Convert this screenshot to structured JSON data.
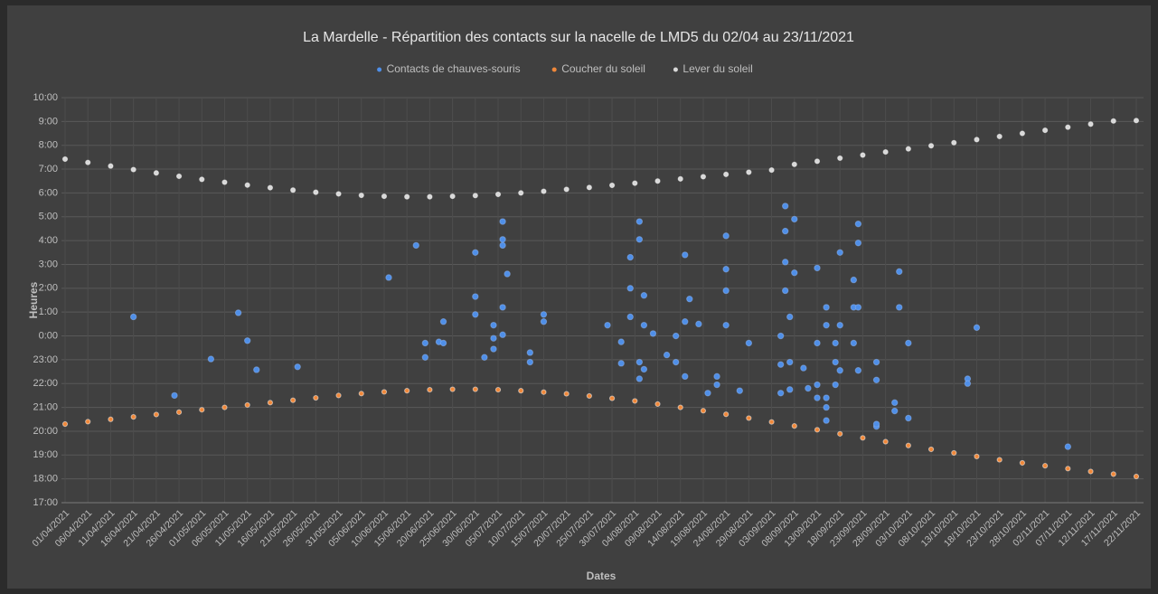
{
  "chart_data": {
    "type": "scatter",
    "title": "La Mardelle - Répartition des contacts sur la nacelle de LMD5 du 02/04 au 23/11/2021",
    "xlabel": "Dates",
    "ylabel": "Heures",
    "legend": "top",
    "grid": true,
    "xlim": [
      "01/04/2021",
      "23/11/2021"
    ],
    "xticks": [
      "01/04/2021",
      "06/04/2021",
      "11/04/2021",
      "16/04/2021",
      "21/04/2021",
      "26/04/2021",
      "01/05/2021",
      "06/05/2021",
      "11/05/2021",
      "16/05/2021",
      "21/05/2021",
      "26/05/2021",
      "31/05/2021",
      "05/06/2021",
      "10/06/2021",
      "15/06/2021",
      "20/06/2021",
      "25/06/2021",
      "30/06/2021",
      "05/07/2021",
      "10/07/2021",
      "15/07/2021",
      "20/07/2021",
      "25/07/2021",
      "30/07/2021",
      "04/08/2021",
      "09/08/2021",
      "14/08/2021",
      "19/08/2021",
      "24/08/2021",
      "29/08/2021",
      "03/09/2021",
      "08/09/2021",
      "13/09/2021",
      "18/09/2021",
      "23/09/2021",
      "28/09/2021",
      "03/10/2021",
      "08/10/2021",
      "13/10/2021",
      "18/10/2021",
      "23/10/2021",
      "28/10/2021",
      "02/11/2021",
      "07/11/2021",
      "12/11/2021",
      "17/11/2021",
      "22/11/2021"
    ],
    "ylim": [
      17,
      34
    ],
    "yticks": [
      {
        "value": 17,
        "label": "17:00"
      },
      {
        "value": 18,
        "label": "18:00"
      },
      {
        "value": 19,
        "label": "19:00"
      },
      {
        "value": 20,
        "label": "20:00"
      },
      {
        "value": 21,
        "label": "21:00"
      },
      {
        "value": 22,
        "label": "22:00"
      },
      {
        "value": 23,
        "label": "23:00"
      },
      {
        "value": 24,
        "label": "0:00"
      },
      {
        "value": 25,
        "label": "1:00"
      },
      {
        "value": 26,
        "label": "2:00"
      },
      {
        "value": 27,
        "label": "3:00"
      },
      {
        "value": 28,
        "label": "4:00"
      },
      {
        "value": 29,
        "label": "5:00"
      },
      {
        "value": 30,
        "label": "6:00"
      },
      {
        "value": 31,
        "label": "7:00"
      },
      {
        "value": 32,
        "label": "8:00"
      },
      {
        "value": 33,
        "label": "9:00"
      },
      {
        "value": 34,
        "label": "10:00"
      }
    ],
    "series": [
      {
        "name": "Contacts de chauves-souris",
        "color": "#4f8fe8",
        "x": [
          "16/04/2021",
          "25/04/2021",
          "03/05/2021",
          "09/05/2021",
          "11/05/2021",
          "13/05/2021",
          "22/05/2021",
          "11/06/2021",
          "17/06/2021",
          "19/06/2021",
          "19/06/2021",
          "22/06/2021",
          "23/06/2021",
          "23/06/2021",
          "30/06/2021",
          "30/06/2021",
          "30/06/2021",
          "02/07/2021",
          "04/07/2021",
          "04/07/2021",
          "04/07/2021",
          "06/07/2021",
          "06/07/2021",
          "06/07/2021",
          "06/07/2021",
          "06/07/2021",
          "07/07/2021",
          "12/07/2021",
          "12/07/2021",
          "15/07/2021",
          "15/07/2021",
          "29/07/2021",
          "01/08/2021",
          "01/08/2021",
          "03/08/2021",
          "03/08/2021",
          "03/08/2021",
          "05/08/2021",
          "05/08/2021",
          "05/08/2021",
          "05/08/2021",
          "06/08/2021",
          "06/08/2021",
          "06/08/2021",
          "08/08/2021",
          "11/08/2021",
          "13/08/2021",
          "13/08/2021",
          "15/08/2021",
          "15/08/2021",
          "15/08/2021",
          "16/08/2021",
          "18/08/2021",
          "20/08/2021",
          "22/08/2021",
          "22/08/2021",
          "24/08/2021",
          "24/08/2021",
          "24/08/2021",
          "24/08/2021",
          "27/08/2021",
          "29/08/2021",
          "05/09/2021",
          "05/09/2021",
          "05/09/2021",
          "06/09/2021",
          "06/09/2021",
          "06/09/2021",
          "06/09/2021",
          "07/09/2021",
          "07/09/2021",
          "07/09/2021",
          "08/09/2021",
          "08/09/2021",
          "10/09/2021",
          "11/09/2021",
          "13/09/2021",
          "13/09/2021",
          "13/09/2021",
          "13/09/2021",
          "15/09/2021",
          "15/09/2021",
          "15/09/2021",
          "15/09/2021",
          "15/09/2021",
          "17/09/2021",
          "17/09/2021",
          "17/09/2021",
          "18/09/2021",
          "18/09/2021",
          "18/09/2021",
          "21/09/2021",
          "21/09/2021",
          "21/09/2021",
          "22/09/2021",
          "22/09/2021",
          "22/09/2021",
          "22/09/2021",
          "26/09/2021",
          "26/09/2021",
          "26/09/2021",
          "26/09/2021",
          "30/09/2021",
          "30/09/2021",
          "01/10/2021",
          "01/10/2021",
          "03/10/2021",
          "03/10/2021",
          "16/10/2021",
          "16/10/2021",
          "18/10/2021",
          "07/11/2021"
        ],
        "values": [
          24.8,
          21.5,
          23.03,
          24.97,
          23.8,
          22.58,
          22.7,
          26.45,
          27.8,
          23.7,
          23.1,
          23.75,
          23.7,
          24.6,
          27.5,
          25.65,
          24.9,
          23.1,
          23.45,
          23.9,
          24.45,
          28.8,
          28.05,
          27.8,
          25.2,
          24.05,
          26.6,
          23.3,
          22.9,
          24.6,
          24.9,
          24.45,
          23.75,
          22.85,
          27.3,
          26,
          24.8,
          22.9,
          22.2,
          28.8,
          28.05,
          25.7,
          24.45,
          22.6,
          24.1,
          23.2,
          24,
          22.9,
          27.4,
          24.6,
          22.3,
          25.55,
          24.5,
          21.6,
          22.3,
          21.95,
          28.2,
          26.8,
          25.9,
          24.45,
          21.7,
          23.7,
          21.6,
          22.8,
          24,
          29.45,
          28.4,
          27.1,
          25.9,
          24.8,
          22.9,
          21.75,
          28.9,
          26.65,
          22.65,
          21.8,
          21.95,
          21.4,
          26.85,
          23.7,
          20.45,
          21.4,
          24.45,
          21,
          25.2,
          23.7,
          22.9,
          21.95,
          27.5,
          24.45,
          22.55,
          25.2,
          23.7,
          26.35,
          28.7,
          22.55,
          27.9,
          25.2,
          20.2,
          20.3,
          22.9,
          22.15,
          20.85,
          21.2,
          26.7,
          25.2,
          20.55,
          23.7,
          22.2,
          22,
          24.35,
          19.35
        ]
      },
      {
        "name": "Coucher du soleil",
        "color": "#f0883a",
        "x": [
          "01/04/2021",
          "06/04/2021",
          "11/04/2021",
          "16/04/2021",
          "21/04/2021",
          "26/04/2021",
          "01/05/2021",
          "06/05/2021",
          "11/05/2021",
          "16/05/2021",
          "21/05/2021",
          "26/05/2021",
          "31/05/2021",
          "05/06/2021",
          "10/06/2021",
          "15/06/2021",
          "20/06/2021",
          "25/06/2021",
          "30/06/2021",
          "05/07/2021",
          "10/07/2021",
          "15/07/2021",
          "20/07/2021",
          "25/07/2021",
          "30/07/2021",
          "04/08/2021",
          "09/08/2021",
          "14/08/2021",
          "19/08/2021",
          "24/08/2021",
          "29/08/2021",
          "03/09/2021",
          "08/09/2021",
          "13/09/2021",
          "18/09/2021",
          "23/09/2021",
          "28/09/2021",
          "03/10/2021",
          "08/10/2021",
          "13/10/2021",
          "18/10/2021",
          "23/10/2021",
          "28/10/2021",
          "02/11/2021",
          "07/11/2021",
          "12/11/2021",
          "17/11/2021",
          "22/11/2021"
        ],
        "values": [
          20.3,
          20.4,
          20.5,
          20.6,
          20.7,
          20.8,
          20.9,
          21,
          21.1,
          21.2,
          21.3,
          21.4,
          21.5,
          21.58,
          21.65,
          21.7,
          21.74,
          21.76,
          21.76,
          21.74,
          21.7,
          21.64,
          21.57,
          21.48,
          21.38,
          21.27,
          21.14,
          21,
          20.86,
          20.71,
          20.55,
          20.39,
          20.22,
          20.06,
          19.89,
          19.72,
          19.56,
          19.4,
          19.24,
          19.09,
          18.94,
          18.8,
          18.67,
          18.55,
          18.43,
          18.31,
          18.2,
          18.1
        ]
      },
      {
        "name": "Lever du soleil",
        "color": "#d8d8d8",
        "x": [
          "01/04/2021",
          "06/04/2021",
          "11/04/2021",
          "16/04/2021",
          "21/04/2021",
          "26/04/2021",
          "01/05/2021",
          "06/05/2021",
          "11/05/2021",
          "16/05/2021",
          "21/05/2021",
          "26/05/2021",
          "31/05/2021",
          "05/06/2021",
          "10/06/2021",
          "15/06/2021",
          "20/06/2021",
          "25/06/2021",
          "30/06/2021",
          "05/07/2021",
          "10/07/2021",
          "15/07/2021",
          "20/07/2021",
          "25/07/2021",
          "30/07/2021",
          "04/08/2021",
          "09/08/2021",
          "14/08/2021",
          "19/08/2021",
          "24/08/2021",
          "29/08/2021",
          "03/09/2021",
          "08/09/2021",
          "13/09/2021",
          "18/09/2021",
          "23/09/2021",
          "28/09/2021",
          "03/10/2021",
          "08/10/2021",
          "13/10/2021",
          "18/10/2021",
          "23/10/2021",
          "28/10/2021",
          "02/11/2021",
          "07/11/2021",
          "12/11/2021",
          "17/11/2021",
          "22/11/2021"
        ],
        "values": [
          31.42,
          31.28,
          31.13,
          30.98,
          30.84,
          30.7,
          30.57,
          30.45,
          30.33,
          30.22,
          30.12,
          30.03,
          29.96,
          29.9,
          29.86,
          29.84,
          29.84,
          29.86,
          29.89,
          29.94,
          30,
          30.07,
          30.15,
          30.23,
          30.32,
          30.41,
          30.5,
          30.59,
          30.68,
          30.78,
          30.87,
          30.96,
          31.2,
          31.33,
          31.46,
          31.59,
          31.72,
          31.85,
          31.98,
          32.11,
          32.24,
          32.37,
          32.5,
          32.63,
          32.76,
          32.89,
          33.02,
          33.04
        ]
      }
    ]
  }
}
